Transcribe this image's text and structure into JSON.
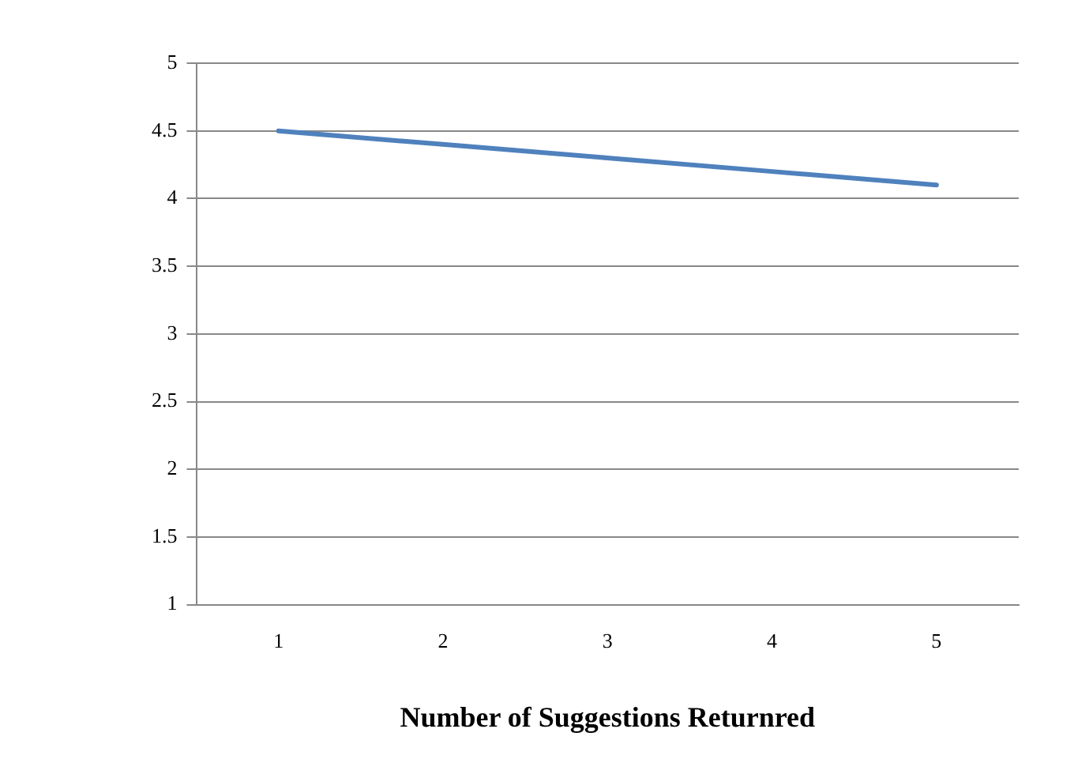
{
  "chart_data": {
    "type": "line",
    "xlabel": "Number of Suggestions Returnred",
    "categories": [
      "1",
      "2",
      "3",
      "4",
      "5"
    ],
    "series": [
      {
        "color": "#4f81bd",
        "values": [
          4.5,
          4.4,
          4.3,
          4.2,
          4.1
        ]
      }
    ],
    "ylim": [
      1,
      5
    ],
    "yticks": [
      1,
      1.5,
      2,
      2.5,
      3,
      3.5,
      4,
      4.5,
      5
    ],
    "grid": "y",
    "legend": false,
    "marker": "none"
  }
}
